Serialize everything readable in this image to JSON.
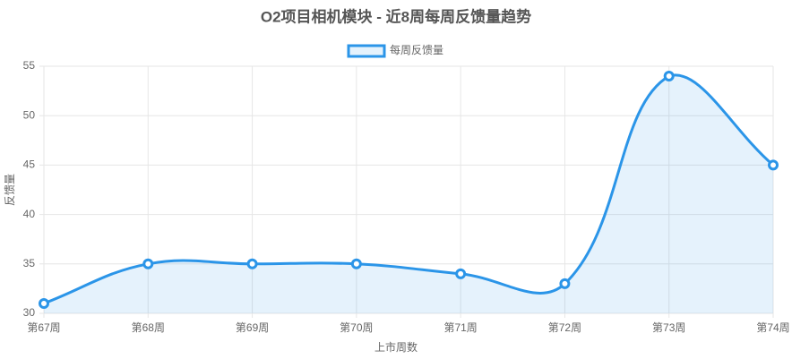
{
  "chart_data": {
    "type": "line",
    "title": "O2项目相机模块 - 近8周每周反馈量趋势",
    "x_label": "上市周数",
    "y_label": "反馈量",
    "categories": [
      "第67周",
      "第68周",
      "第69周",
      "第70周",
      "第71周",
      "第72周",
      "第73周",
      "第74周"
    ],
    "series": [
      {
        "name": "每周反馈量",
        "color": "#2b95e8",
        "values": [
          31,
          35,
          35,
          35,
          34,
          33,
          54,
          45
        ]
      }
    ],
    "ylim": [
      30,
      55
    ],
    "yticks": [
      30,
      35,
      40,
      45,
      50,
      55
    ],
    "grid": true,
    "fill": true,
    "legend": "top"
  }
}
